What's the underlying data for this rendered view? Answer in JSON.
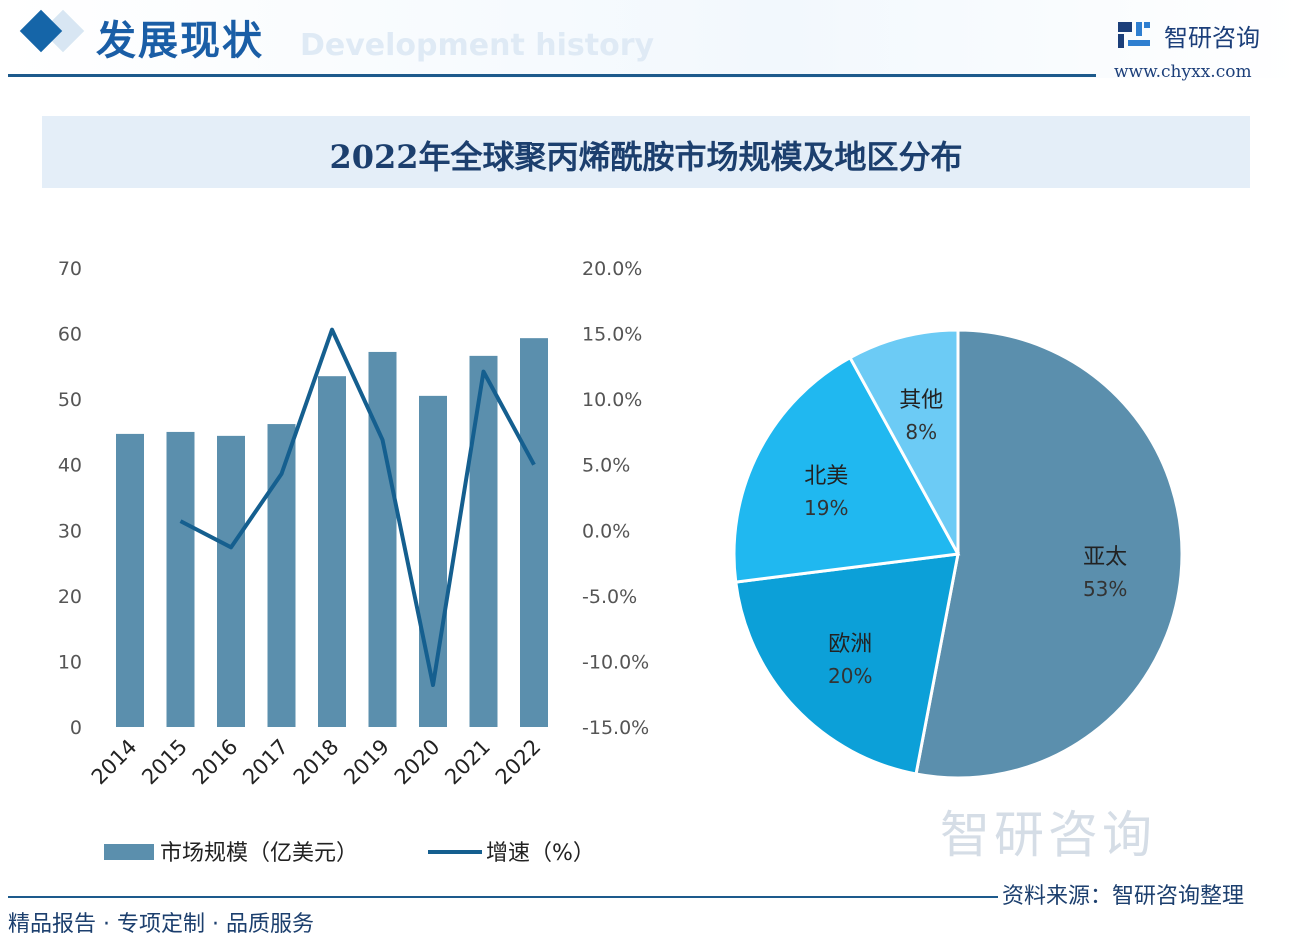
{
  "header": {
    "section_title": "发展现状",
    "section_subtitle": "Development history",
    "brand": "智研咨询",
    "url": "www.chyxx.com"
  },
  "title": "2022年全球聚丙烯酰胺市场规模及地区分布",
  "footer": {
    "left": "精品报告 · 专项定制 · 品质服务",
    "source": "资料来源：智研咨询整理",
    "watermark": "智研咨询"
  },
  "colors": {
    "bar": "#5b8fad",
    "line": "#155f8f",
    "title_band": "#e4eef8",
    "accent": "#1a5ea6"
  },
  "chart_data": [
    {
      "type": "bar+line",
      "categories": [
        "2014",
        "2015",
        "2016",
        "2017",
        "2018",
        "2019",
        "2020",
        "2021",
        "2022"
      ],
      "series": [
        {
          "name": "市场规模（亿美元）",
          "type": "bar",
          "axis": "left",
          "values": [
            44.7,
            45.0,
            44.4,
            46.2,
            53.5,
            57.2,
            50.5,
            56.6,
            59.3
          ]
        },
        {
          "name": "增速（%）",
          "type": "line",
          "axis": "right",
          "values": [
            null,
            0.7,
            -1.3,
            4.3,
            15.3,
            6.9,
            -11.8,
            12.1,
            5.0
          ]
        }
      ],
      "left_axis": {
        "ylim": [
          0,
          70
        ],
        "ticks": [
          "0",
          "10",
          "20",
          "30",
          "40",
          "50",
          "60",
          "70"
        ]
      },
      "right_axis": {
        "ylim": [
          -15,
          20
        ],
        "ticks": [
          "-15.0%",
          "-10.0%",
          "-5.0%",
          "0.0%",
          "5.0%",
          "10.0%",
          "15.0%",
          "20.0%"
        ]
      },
      "legend_position": "bottom",
      "grid": false
    },
    {
      "type": "pie",
      "slices": [
        {
          "label": "亚太",
          "value": 53,
          "text": "53%",
          "color": "#5b8fad"
        },
        {
          "label": "欧洲",
          "value": 20,
          "text": "20%",
          "color": "#0ca0d8"
        },
        {
          "label": "北美",
          "value": 19,
          "text": "19%",
          "color": "#20b8f0"
        },
        {
          "label": "其他",
          "value": 8,
          "text": "8%",
          "color": "#6ccbf5"
        }
      ]
    }
  ]
}
